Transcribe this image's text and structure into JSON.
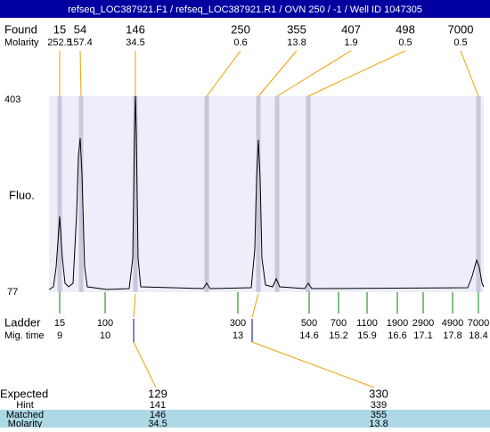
{
  "header": {
    "title": "refseq_LOC387921.F1 / refseq_LOC387921.R1 / OVN 250 / -1 / Well ID 1047305"
  },
  "found": {
    "label": "Found",
    "molarity_label": "Molarity",
    "sizes": [
      15,
      54,
      146,
      250,
      355,
      407,
      498,
      7000
    ],
    "molarities": [
      252.5,
      157.4,
      34.5,
      0.6,
      13.8,
      1.9,
      0.5,
      0.5
    ]
  },
  "axis": {
    "label": "Fluo.",
    "max": 403,
    "min": 77
  },
  "ladder": {
    "label": "Ladder",
    "mig_label": "Mig. time",
    "sizes": [
      15,
      100,
      300,
      500,
      700,
      1100,
      1900,
      2900,
      4900,
      7000
    ],
    "mig_times": [
      9,
      10,
      13,
      14.6,
      15.2,
      15.9,
      16.6,
      17.1,
      17.8,
      18.4
    ]
  },
  "expected": {
    "label": "Expected",
    "hint_label": "Hint",
    "matched_label": "Matched",
    "molarity_label": "Molarity",
    "columns": [
      {
        "expected": 129,
        "hint": 141,
        "matched": 146,
        "molarity": 34.5
      },
      {
        "expected": 330,
        "hint": 339,
        "matched": 355,
        "molarity": 13.8
      }
    ]
  }
}
